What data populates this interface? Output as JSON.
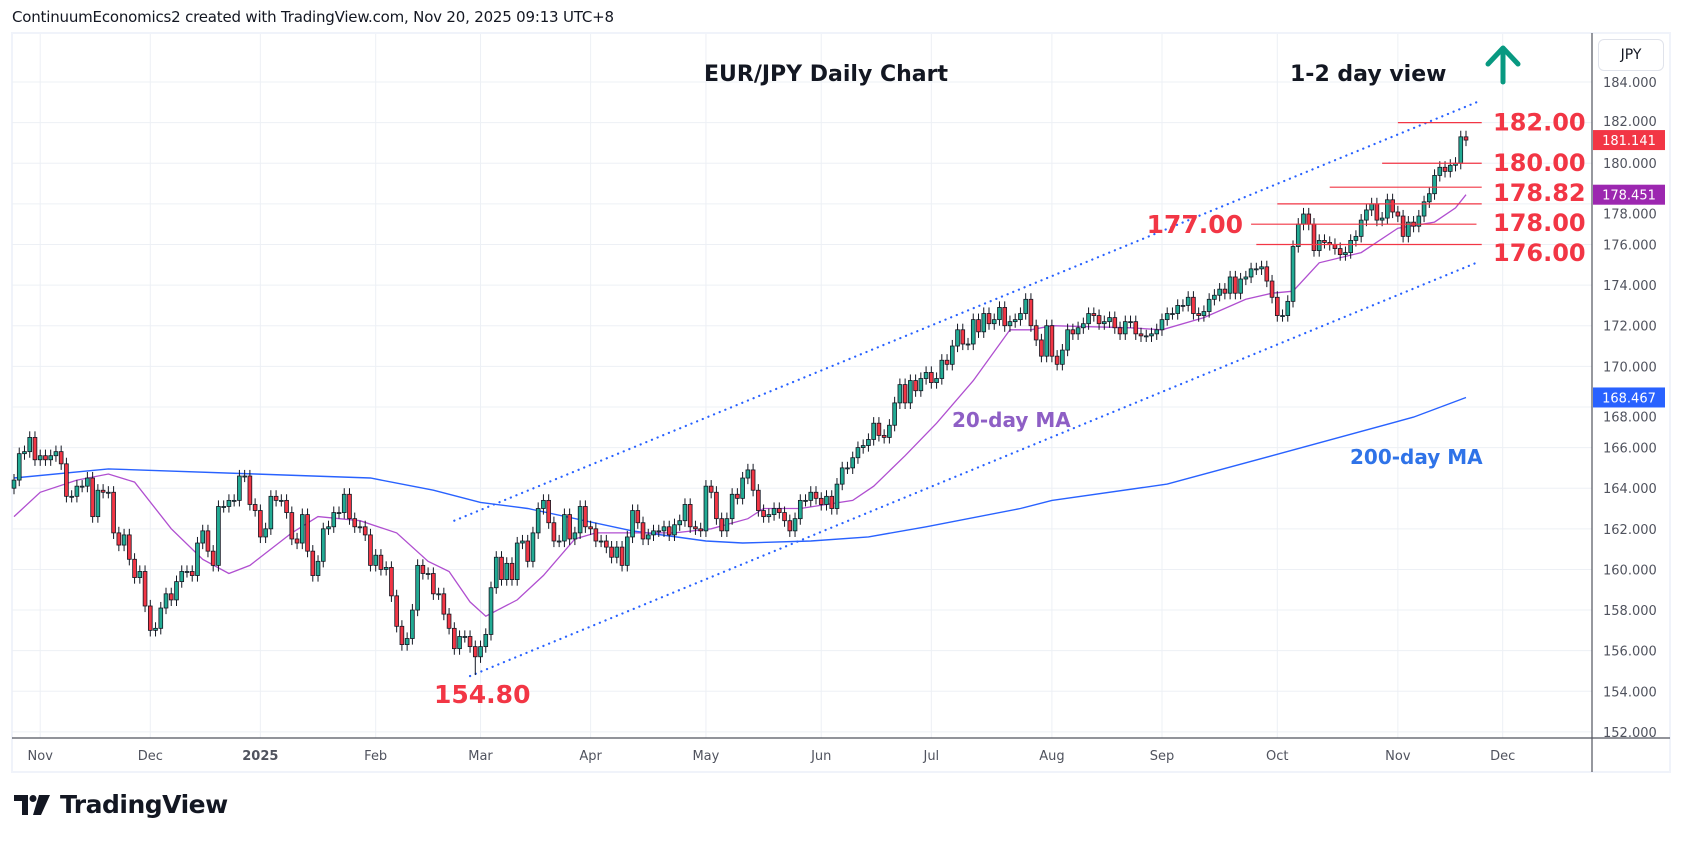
{
  "header": {
    "text": "ContinuumEconomics2 created with TradingView.com, Nov 20, 2025 09:13 UTC+8"
  },
  "logo": {
    "text": "TradingView"
  },
  "price_axis": {
    "currency_button": "JPY"
  },
  "colors": {
    "up": "#22ab94",
    "down": "#f23645",
    "ma20": "#9c27b0",
    "ma200": "#2962ff",
    "levels": "#f23645",
    "arrow": "#089981",
    "channel": "#2962ff"
  },
  "chart_data": {
    "type": "candlestick",
    "title": "EUR/JPY Daily Chart",
    "subtitle": "1-2 day view",
    "view_arrow": "up",
    "ylim": [
      152,
      184
    ],
    "y_ticks": [
      "184.000",
      "182.000",
      "180.000",
      "178.000",
      "176.000",
      "174.000",
      "172.000",
      "170.000",
      "168.000",
      "166.000",
      "164.000",
      "162.000",
      "160.000",
      "158.000",
      "156.000",
      "154.000",
      "152.000"
    ],
    "grid": true,
    "x_ticks": [
      {
        "label": "Nov",
        "date": "2024-11-01",
        "bold": false
      },
      {
        "label": "Dec",
        "date": "2024-12-02",
        "bold": false
      },
      {
        "label": "2025",
        "date": "2025-01-02",
        "bold": true
      },
      {
        "label": "Feb",
        "date": "2025-02-03",
        "bold": false
      },
      {
        "label": "Mar",
        "date": "2025-03-03",
        "bold": false
      },
      {
        "label": "Apr",
        "date": "2025-04-01",
        "bold": false
      },
      {
        "label": "May",
        "date": "2025-05-01",
        "bold": false
      },
      {
        "label": "Jun",
        "date": "2025-06-02",
        "bold": false
      },
      {
        "label": "Jul",
        "date": "2025-07-01",
        "bold": false
      },
      {
        "label": "Aug",
        "date": "2025-08-01",
        "bold": false
      },
      {
        "label": "Sep",
        "date": "2025-09-01",
        "bold": false
      },
      {
        "label": "Oct",
        "date": "2025-10-01",
        "bold": false
      },
      {
        "label": "Nov",
        "date": "2025-11-03",
        "bold": false
      },
      {
        "label": "Dec",
        "date": "2025-12-01",
        "bold": false
      }
    ],
    "first_date": "2024-10-25",
    "holidays": [
      "2024-12-25",
      "2025-01-01"
    ],
    "closes": [
      164.4,
      165.7,
      165.8,
      166.5,
      165.4,
      165.6,
      165.4,
      165.6,
      165.8,
      165.2,
      163.6,
      163.6,
      164.1,
      164.1,
      164.5,
      162.6,
      163.9,
      163.8,
      163.8,
      161.8,
      161.2,
      161.7,
      160.5,
      159.6,
      159.9,
      158.2,
      157.0,
      157.1,
      158.1,
      158.8,
      158.5,
      159.4,
      159.9,
      159.9,
      159.7,
      161.3,
      161.9,
      160.9,
      160.2,
      163.1,
      163.1,
      163.4,
      163.4,
      164.6,
      164.6,
      163.2,
      162.9,
      161.6,
      162.0,
      163.6,
      163.4,
      163.4,
      162.8,
      161.5,
      161.3,
      162.7,
      160.9,
      159.7,
      160.4,
      162.0,
      162.1,
      162.8,
      162.8,
      163.7,
      162.5,
      162.1,
      162.1,
      161.7,
      160.2,
      160.7,
      160.0,
      160.1,
      158.7,
      157.2,
      156.3,
      156.6,
      158.0,
      160.2,
      159.8,
      159.8,
      158.8,
      158.8,
      157.8,
      157.1,
      156.1,
      156.7,
      156.7,
      156.2,
      155.7,
      156.2,
      156.8,
      159.1,
      160.6,
      159.5,
      160.3,
      159.5,
      161.3,
      161.4,
      160.4,
      161.8,
      163.0,
      163.4,
      162.3,
      161.4,
      161.4,
      162.7,
      161.5,
      161.8,
      163.1,
      162.1,
      162.0,
      161.4,
      161.4,
      161.1,
      160.6,
      161.1,
      160.2,
      161.6,
      162.9,
      162.3,
      161.5,
      161.7,
      161.9,
      161.9,
      162.1,
      161.7,
      162.2,
      162.4,
      163.2,
      162.1,
      162.0,
      161.9,
      164.1,
      163.8,
      162.5,
      161.9,
      162.5,
      163.7,
      163.5,
      164.5,
      164.9,
      163.9,
      162.9,
      162.6,
      162.7,
      163.0,
      162.8,
      162.4,
      161.9,
      162.5,
      163.4,
      163.4,
      163.8,
      163.5,
      163.2,
      163.6,
      163.0,
      164.2,
      165.0,
      165.0,
      165.5,
      166.0,
      166.1,
      166.4,
      167.2,
      166.6,
      166.5,
      167.1,
      168.2,
      169.1,
      168.2,
      169.3,
      168.8,
      169.4,
      169.7,
      169.2,
      169.4,
      170.3,
      170.1,
      171.0,
      171.8,
      171.1,
      171.1,
      172.3,
      171.7,
      172.6,
      172.1,
      172.3,
      172.9,
      172.0,
      172.2,
      172.3,
      172.6,
      173.3,
      172.0,
      171.3,
      170.5,
      172.0,
      170.5,
      170.1,
      170.8,
      171.8,
      171.6,
      171.9,
      172.1,
      172.6,
      172.5,
      172.1,
      172.2,
      172.4,
      171.9,
      171.6,
      172.2,
      172.2,
      171.6,
      171.5,
      171.5,
      171.6,
      171.8,
      172.3,
      172.6,
      172.6,
      173.0,
      173.0,
      173.4,
      172.6,
      172.5,
      172.7,
      173.3,
      173.5,
      173.8,
      173.6,
      174.4,
      173.6,
      174.3,
      174.4,
      174.8,
      174.8,
      174.9,
      174.2,
      173.4,
      172.5,
      172.5,
      173.2,
      175.9,
      177.0,
      177.5,
      177.0,
      175.7,
      176.2,
      176.1,
      176.0,
      175.8,
      175.5,
      175.6,
      176.2,
      176.4,
      177.2,
      177.7,
      178.0,
      177.2,
      177.3,
      178.2,
      177.6,
      177.4,
      176.4,
      177.1,
      176.9,
      177.4,
      178.1,
      178.5,
      179.4,
      179.8,
      179.6,
      179.9,
      180.0,
      181.3,
      181.141
    ],
    "extremes": [
      {
        "date": "2025-02-28",
        "low": 154.8
      }
    ],
    "last_price": "181.141",
    "ma20": {
      "label": "20-day MA",
      "last": "178.451",
      "points": [
        [
          "2024-10-25",
          162.6
        ],
        [
          "2024-11-01",
          163.8
        ],
        [
          "2024-11-12",
          164.4
        ],
        [
          "2024-11-20",
          164.7
        ],
        [
          "2024-11-27",
          164.3
        ],
        [
          "2024-12-06",
          162.0
        ],
        [
          "2024-12-16",
          160.5
        ],
        [
          "2024-12-23",
          159.8
        ],
        [
          "2024-12-30",
          160.2
        ],
        [
          "2025-01-10",
          161.8
        ],
        [
          "2025-01-17",
          162.6
        ],
        [
          "2025-01-29",
          162.4
        ],
        [
          "2025-02-07",
          161.8
        ],
        [
          "2025-02-17",
          160.4
        ],
        [
          "2025-02-21",
          159.9
        ],
        [
          "2025-02-27",
          158.4
        ],
        [
          "2025-03-04",
          157.7
        ],
        [
          "2025-03-12",
          158.5
        ],
        [
          "2025-03-19",
          159.7
        ],
        [
          "2025-03-27",
          161.5
        ],
        [
          "2025-04-02",
          161.8
        ],
        [
          "2025-04-23",
          161.8
        ],
        [
          "2025-05-02",
          162.0
        ],
        [
          "2025-05-13",
          162.5
        ],
        [
          "2025-05-16",
          163.0
        ],
        [
          "2025-05-27",
          163.0
        ],
        [
          "2025-06-10",
          163.4
        ],
        [
          "2025-06-16",
          164.1
        ],
        [
          "2025-06-24",
          165.6
        ],
        [
          "2025-07-02",
          167.2
        ],
        [
          "2025-07-11",
          169.3
        ],
        [
          "2025-07-22",
          171.8
        ],
        [
          "2025-07-28",
          171.8
        ],
        [
          "2025-08-01",
          172.0
        ],
        [
          "2025-08-22",
          171.9
        ],
        [
          "2025-09-01",
          171.8
        ],
        [
          "2025-09-11",
          172.4
        ],
        [
          "2025-09-23",
          173.3
        ],
        [
          "2025-09-30",
          173.6
        ],
        [
          "2025-10-06",
          173.7
        ],
        [
          "2025-10-13",
          175.1
        ],
        [
          "2025-10-23",
          175.6
        ],
        [
          "2025-11-03",
          176.8
        ],
        [
          "2025-11-12",
          177.1
        ],
        [
          "2025-11-18",
          177.8
        ],
        [
          "2025-11-20",
          178.451
        ]
      ]
    },
    "ma200": {
      "label": "200-day MA",
      "last": "168.467",
      "points": [
        [
          "2024-10-25",
          164.5
        ],
        [
          "2024-11-20",
          164.95
        ],
        [
          "2024-12-31",
          164.7
        ],
        [
          "2025-01-31",
          164.5
        ],
        [
          "2025-02-18",
          163.9
        ],
        [
          "2025-03-03",
          163.3
        ],
        [
          "2025-03-14",
          163.0
        ],
        [
          "2025-04-11",
          161.9
        ],
        [
          "2025-05-01",
          161.4
        ],
        [
          "2025-05-12",
          161.3
        ],
        [
          "2025-05-29",
          161.4
        ],
        [
          "2025-06-13",
          161.6
        ],
        [
          "2025-06-30",
          162.1
        ],
        [
          "2025-07-24",
          163.0
        ],
        [
          "2025-08-01",
          163.4
        ],
        [
          "2025-09-02",
          164.2
        ],
        [
          "2025-09-30",
          165.6
        ],
        [
          "2025-11-06",
          167.5
        ],
        [
          "2025-11-20",
          168.467
        ]
      ]
    },
    "channel": {
      "upper": [
        [
          "2025-02-24",
          162.4
        ],
        [
          "2025-11-24",
          183.0
        ]
      ],
      "lower": [
        [
          "2025-02-27",
          154.75
        ],
        [
          "2025-11-24",
          175.1
        ]
      ]
    },
    "levels": [
      {
        "label": "182.00",
        "price": 182.0,
        "from": "2025-11-03",
        "to": "2025-11-25"
      },
      {
        "label": "180.00",
        "price": 180.0,
        "from": "2025-10-29",
        "to": "2025-11-25"
      },
      {
        "label": "178.82",
        "price": 178.82,
        "from": "2025-10-15",
        "to": "2025-11-25"
      },
      {
        "label": "178.00",
        "price": 178.0,
        "from": "2025-10-01",
        "to": "2025-11-25"
      },
      {
        "label": "177.00",
        "price": 177.0,
        "from": "2025-09-24",
        "to": "2025-11-24",
        "label_side": "left"
      },
      {
        "label": "176.00",
        "price": 176.0,
        "from": "2025-09-25",
        "to": "2025-11-25"
      }
    ],
    "low_label": {
      "label": "154.80",
      "date": "2025-02-28",
      "price": 154.8
    }
  }
}
